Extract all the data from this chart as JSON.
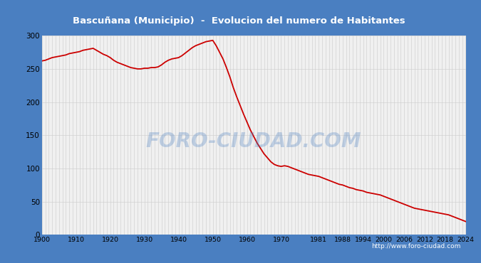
{
  "title": "Bascuñana (Municipio)  -  Evolucion del numero de Habitantes",
  "x_ticks": [
    1900,
    1910,
    1920,
    1930,
    1940,
    1950,
    1960,
    1970,
    1981,
    1988,
    1994,
    2000,
    2006,
    2012,
    2018,
    2024
  ],
  "ylim": [
    0,
    300
  ],
  "yticks": [
    0,
    50,
    100,
    150,
    200,
    250,
    300
  ],
  "line_color": "#cc0000",
  "bg_header_color": "#4a7fc1",
  "plot_bg_color": "#f0f0f0",
  "grid_color": "#cccccc",
  "title_color": "white",
  "watermark": "FORO-CIUDAD.COM",
  "url": "http://www.foro-ciudad.com",
  "years": [
    1900,
    1901,
    1902,
    1903,
    1904,
    1905,
    1906,
    1907,
    1908,
    1909,
    1910,
    1911,
    1912,
    1913,
    1914,
    1915,
    1916,
    1917,
    1918,
    1919,
    1920,
    1921,
    1922,
    1923,
    1924,
    1925,
    1926,
    1927,
    1928,
    1929,
    1930,
    1931,
    1932,
    1933,
    1934,
    1935,
    1936,
    1937,
    1938,
    1939,
    1940,
    1941,
    1942,
    1943,
    1944,
    1945,
    1946,
    1947,
    1948,
    1949,
    1950,
    1951,
    1952,
    1953,
    1954,
    1955,
    1956,
    1957,
    1958,
    1959,
    1960,
    1961,
    1962,
    1963,
    1964,
    1965,
    1966,
    1967,
    1968,
    1969,
    1970,
    1971,
    1972,
    1973,
    1974,
    1975,
    1976,
    1977,
    1978,
    1979,
    1980,
    1981,
    1982,
    1983,
    1984,
    1985,
    1986,
    1987,
    1988,
    1989,
    1990,
    1991,
    1992,
    1993,
    1994,
    1995,
    1996,
    1997,
    1998,
    1999,
    2000,
    2001,
    2002,
    2003,
    2004,
    2005,
    2006,
    2007,
    2008,
    2009,
    2010,
    2011,
    2012,
    2013,
    2014,
    2015,
    2016,
    2017,
    2018,
    2019,
    2020,
    2021,
    2022,
    2023,
    2024
  ],
  "population": [
    262,
    263,
    265,
    267,
    268,
    269,
    270,
    271,
    273,
    274,
    275,
    276,
    278,
    279,
    280,
    281,
    278,
    275,
    272,
    270,
    267,
    263,
    260,
    258,
    256,
    254,
    252,
    251,
    250,
    250,
    251,
    251,
    252,
    252,
    253,
    256,
    260,
    263,
    265,
    266,
    267,
    270,
    274,
    278,
    282,
    285,
    287,
    289,
    291,
    292,
    293,
    285,
    275,
    265,
    252,
    238,
    222,
    208,
    195,
    182,
    170,
    158,
    148,
    138,
    130,
    122,
    116,
    110,
    106,
    104,
    103,
    104,
    103,
    101,
    99,
    97,
    95,
    93,
    91,
    90,
    89,
    88,
    86,
    84,
    82,
    80,
    78,
    76,
    75,
    73,
    71,
    70,
    68,
    67,
    66,
    64,
    63,
    62,
    61,
    60,
    58,
    56,
    54,
    52,
    50,
    48,
    46,
    44,
    42,
    40,
    39,
    38,
    37,
    36,
    35,
    34,
    33,
    32,
    31,
    30,
    28,
    26,
    24,
    22,
    20
  ]
}
